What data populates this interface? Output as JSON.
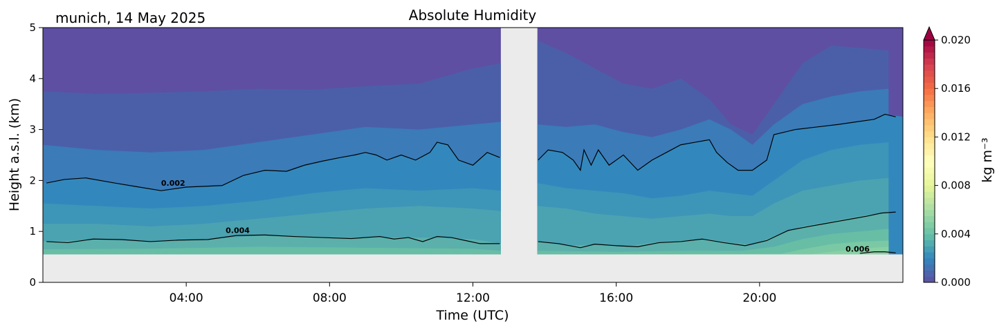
{
  "chart_data": {
    "type": "heatmap",
    "title": "Absolute Humidity",
    "subtitle": "munich, 14 May 2025",
    "xlabel": "Time (UTC)",
    "ylabel": "Height a.s.l. (km)",
    "xlim": [
      0.0,
      24.0
    ],
    "ylim": [
      0,
      5
    ],
    "x_ticks": [
      "04:00",
      "08:00",
      "12:00",
      "16:00",
      "20:00"
    ],
    "x_tick_hours": [
      4,
      8,
      12,
      16,
      20
    ],
    "y_ticks": [
      "0",
      "1",
      "2",
      "3",
      "4",
      "5"
    ],
    "colorbar": {
      "label": "kg m⁻³",
      "range": [
        0.0,
        0.02
      ],
      "extend": "max",
      "ticks": [
        "0.000",
        "0.004",
        "0.008",
        "0.012",
        "0.016",
        "0.020"
      ],
      "colormap": "Spectral_r"
    },
    "data_gap_hours": [
      12.78,
      13.8
    ],
    "data_bottom_km": 0.55,
    "series": [
      {
        "kind": "contour",
        "level": "0.002",
        "label": "0.002",
        "label_pos": [
          3.3,
          1.9
        ],
        "x": [
          0.1,
          0.6,
          1.2,
          2.0,
          2.6,
          3.3,
          4.0,
          5.0,
          5.6,
          6.2,
          6.8,
          7.3,
          7.8,
          8.3,
          8.7,
          9.0,
          9.3,
          9.6,
          10.0,
          10.4,
          10.8,
          11.0,
          11.3,
          11.6,
          12.0,
          12.4,
          12.75
        ],
        "y": [
          1.95,
          2.02,
          2.05,
          1.95,
          1.88,
          1.8,
          1.87,
          1.9,
          2.1,
          2.2,
          2.18,
          2.3,
          2.38,
          2.45,
          2.5,
          2.55,
          2.5,
          2.4,
          2.5,
          2.4,
          2.55,
          2.75,
          2.7,
          2.4,
          2.3,
          2.55,
          2.45
        ]
      },
      {
        "kind": "contour",
        "level": "0.002",
        "label": "",
        "label_pos": null,
        "x": [
          13.82,
          14.1,
          14.5,
          14.8,
          15.0,
          15.1,
          15.3,
          15.5,
          15.8,
          16.2,
          16.6,
          17.0,
          17.4,
          17.8,
          18.2,
          18.6,
          18.8,
          19.1,
          19.4,
          19.8,
          20.2,
          20.4,
          21.0,
          21.6,
          22.2,
          22.7,
          23.2,
          23.5,
          23.8
        ],
        "y": [
          2.4,
          2.6,
          2.55,
          2.4,
          2.2,
          2.6,
          2.3,
          2.6,
          2.3,
          2.5,
          2.2,
          2.4,
          2.55,
          2.7,
          2.75,
          2.8,
          2.55,
          2.35,
          2.2,
          2.2,
          2.4,
          2.9,
          3.0,
          3.05,
          3.1,
          3.15,
          3.2,
          3.3,
          3.25
        ]
      },
      {
        "kind": "contour",
        "level": "0.004",
        "label": "0.004",
        "label_pos": [
          5.1,
          0.97
        ],
        "x": [
          0.1,
          0.7,
          1.4,
          2.2,
          3.0,
          3.8,
          4.6,
          5.4,
          6.2,
          7.0,
          7.8,
          8.6,
          9.4,
          9.8,
          10.2,
          10.6,
          11.0,
          11.4,
          11.8,
          12.2,
          12.75
        ],
        "y": [
          0.8,
          0.78,
          0.85,
          0.84,
          0.8,
          0.83,
          0.84,
          0.92,
          0.93,
          0.9,
          0.88,
          0.86,
          0.9,
          0.85,
          0.88,
          0.8,
          0.9,
          0.88,
          0.82,
          0.76,
          0.76
        ]
      },
      {
        "kind": "contour",
        "level": "0.004",
        "label": "",
        "label_pos": null,
        "x": [
          13.82,
          14.4,
          15.0,
          15.4,
          16.0,
          16.6,
          17.2,
          17.8,
          18.4,
          19.0,
          19.6,
          20.2,
          20.8,
          21.4,
          21.8,
          22.2,
          22.6,
          23.0,
          23.4,
          23.8
        ],
        "y": [
          0.8,
          0.76,
          0.68,
          0.75,
          0.72,
          0.7,
          0.78,
          0.8,
          0.85,
          0.78,
          0.72,
          0.82,
          1.02,
          1.1,
          1.15,
          1.2,
          1.25,
          1.3,
          1.36,
          1.38
        ]
      },
      {
        "kind": "contour",
        "level": "0.006",
        "label": "0.006",
        "label_pos": [
          22.4,
          0.6
        ],
        "x": [
          22.8,
          23.2,
          23.5,
          23.8
        ],
        "y": [
          0.57,
          0.6,
          0.6,
          0.58
        ]
      }
    ],
    "fill_layers": [
      {
        "min": 0.0,
        "max": 0.001,
        "color": "#5e4fa2",
        "top_x": [
          0,
          4,
          8,
          12.78,
          13.8,
          16,
          18,
          20,
          22,
          24
        ],
        "top_y": [
          5,
          5,
          5,
          5,
          5,
          5,
          5,
          5,
          5,
          5
        ]
      },
      {
        "min": 0.001,
        "max": 0.0015,
        "color": "#4b5fa9",
        "top_x": [
          0,
          1.5,
          3,
          4.5,
          6,
          7.5,
          9,
          10.5,
          12,
          12.78,
          13.8,
          14.6,
          15.4,
          16.2,
          17.0,
          17.8,
          18.6,
          19.2,
          19.8,
          20.4,
          21.2,
          22.0,
          22.8,
          23.6
        ],
        "top_y": [
          3.75,
          3.7,
          3.72,
          3.75,
          3.8,
          3.78,
          3.85,
          3.9,
          4.2,
          4.3,
          4.75,
          4.5,
          4.2,
          3.9,
          3.8,
          4.0,
          3.6,
          3.1,
          2.9,
          3.5,
          4.3,
          4.65,
          4.6,
          4.55
        ]
      },
      {
        "min": 0.0015,
        "max": 0.002,
        "color": "#3b7bb8",
        "top_x": [
          0,
          1.5,
          3,
          4.5,
          6,
          7.5,
          9,
          10.5,
          12,
          12.78,
          13.8,
          14.6,
          15.4,
          16.2,
          17.0,
          17.8,
          18.6,
          19.2,
          19.8,
          20.4,
          21.2,
          22.0,
          22.8,
          23.6
        ],
        "top_y": [
          2.7,
          2.6,
          2.55,
          2.6,
          2.75,
          2.9,
          3.05,
          3.0,
          3.1,
          3.15,
          3.1,
          3.05,
          3.1,
          2.95,
          2.85,
          3.0,
          3.2,
          3.0,
          2.7,
          3.1,
          3.5,
          3.65,
          3.75,
          3.8
        ]
      },
      {
        "min": 0.002,
        "max": 0.0025,
        "color": "#3288bd",
        "top_x": [
          0,
          1,
          2,
          3.3,
          4,
          5,
          5.6,
          6.2,
          6.8,
          7.3,
          7.8,
          8.3,
          8.7,
          9.0,
          9.3,
          9.6,
          10.0,
          10.4,
          10.8,
          11.0,
          11.3,
          11.6,
          12.0,
          12.4,
          12.78,
          13.8,
          14.1,
          14.5,
          14.8,
          15.0,
          15.1,
          15.3,
          15.5,
          15.8,
          16.2,
          16.6,
          17.0,
          17.4,
          17.8,
          18.2,
          18.6,
          18.8,
          19.1,
          19.4,
          19.8,
          20.2,
          20.4,
          21.0,
          21.6,
          22.2,
          22.7,
          23.2,
          23.5,
          24
        ],
        "top_y": [
          1.95,
          2.05,
          1.95,
          1.8,
          1.87,
          1.9,
          2.1,
          2.2,
          2.18,
          2.3,
          2.38,
          2.45,
          2.5,
          2.55,
          2.5,
          2.4,
          2.5,
          2.4,
          2.55,
          2.75,
          2.7,
          2.4,
          2.3,
          2.55,
          2.45,
          2.4,
          2.6,
          2.55,
          2.4,
          2.2,
          2.6,
          2.3,
          2.6,
          2.3,
          2.5,
          2.2,
          2.4,
          2.55,
          2.7,
          2.75,
          2.8,
          2.55,
          2.35,
          2.2,
          2.2,
          2.4,
          2.9,
          3.0,
          3.05,
          3.1,
          3.15,
          3.2,
          3.3,
          3.25
        ]
      },
      {
        "min": 0.0025,
        "max": 0.003,
        "color": "#3d95b8",
        "top_x": [
          0,
          1.5,
          3,
          4.5,
          6,
          7.5,
          9,
          10.5,
          12,
          12.78,
          13.8,
          14.6,
          15.4,
          16.2,
          17.0,
          17.8,
          18.6,
          19.2,
          19.8,
          20.4,
          21.2,
          22.0,
          22.8,
          23.6
        ],
        "top_y": [
          1.55,
          1.5,
          1.45,
          1.5,
          1.6,
          1.75,
          1.85,
          1.8,
          1.85,
          1.8,
          1.95,
          1.85,
          1.8,
          1.75,
          1.65,
          1.7,
          1.8,
          1.75,
          1.7,
          2.0,
          2.4,
          2.6,
          2.7,
          2.75
        ]
      },
      {
        "min": 0.003,
        "max": 0.0035,
        "color": "#4ba2b1",
        "top_x": [
          0,
          1.5,
          3,
          4.5,
          6,
          7.5,
          9,
          10.5,
          12,
          12.78,
          13.8,
          14.6,
          15.4,
          16.2,
          17.0,
          17.8,
          18.6,
          19.2,
          19.8,
          20.4,
          21.2,
          22.0,
          22.8,
          23.6
        ],
        "top_y": [
          1.15,
          1.15,
          1.1,
          1.15,
          1.25,
          1.35,
          1.45,
          1.5,
          1.45,
          1.4,
          1.5,
          1.45,
          1.35,
          1.3,
          1.25,
          1.3,
          1.35,
          1.3,
          1.3,
          1.55,
          1.8,
          1.9,
          2.0,
          2.05
        ]
      },
      {
        "min": 0.0035,
        "max": 0.004,
        "color": "#5bb0ab",
        "top_x": [
          0,
          1.5,
          3,
          4.5,
          6,
          7.5,
          9,
          10.5,
          12,
          12.78,
          13.8,
          14.6,
          15.4,
          16.2,
          17.0,
          17.8,
          18.6,
          19.2,
          19.8,
          20.4,
          21.2,
          22.0,
          22.8,
          23.6
        ],
        "top_y": [
          0.8,
          0.84,
          0.8,
          0.84,
          0.92,
          0.9,
          0.88,
          0.88,
          0.85,
          0.76,
          0.8,
          0.72,
          0.74,
          0.7,
          0.78,
          0.82,
          0.84,
          0.78,
          0.74,
          0.9,
          1.1,
          1.2,
          1.3,
          1.38
        ]
      },
      {
        "min": 0.004,
        "max": 0.0045,
        "color": "#68bda5",
        "top_x": [
          0,
          3,
          6,
          9,
          12,
          12.78,
          13.8,
          16,
          18,
          19.5,
          20.4,
          21.2,
          22.0,
          22.8,
          23.6
        ],
        "top_y": [
          0.65,
          0.66,
          0.7,
          0.68,
          0.66,
          0.62,
          0.62,
          0.6,
          0.62,
          0.62,
          0.7,
          0.85,
          0.95,
          1.0,
          1.05
        ]
      },
      {
        "min": 0.0045,
        "max": 0.005,
        "color": "#7ac9a4",
        "top_x": [
          13.8,
          20.6,
          21.2,
          22.0,
          22.8,
          23.6
        ],
        "top_y": [
          0.55,
          0.56,
          0.65,
          0.75,
          0.8,
          0.82
        ]
      },
      {
        "min": 0.005,
        "max": 0.006,
        "color": "#89d1a4",
        "top_x": [
          13.8,
          21.4,
          22.0,
          22.8,
          23.6
        ],
        "top_y": [
          0.55,
          0.55,
          0.6,
          0.66,
          0.7
        ]
      }
    ]
  }
}
